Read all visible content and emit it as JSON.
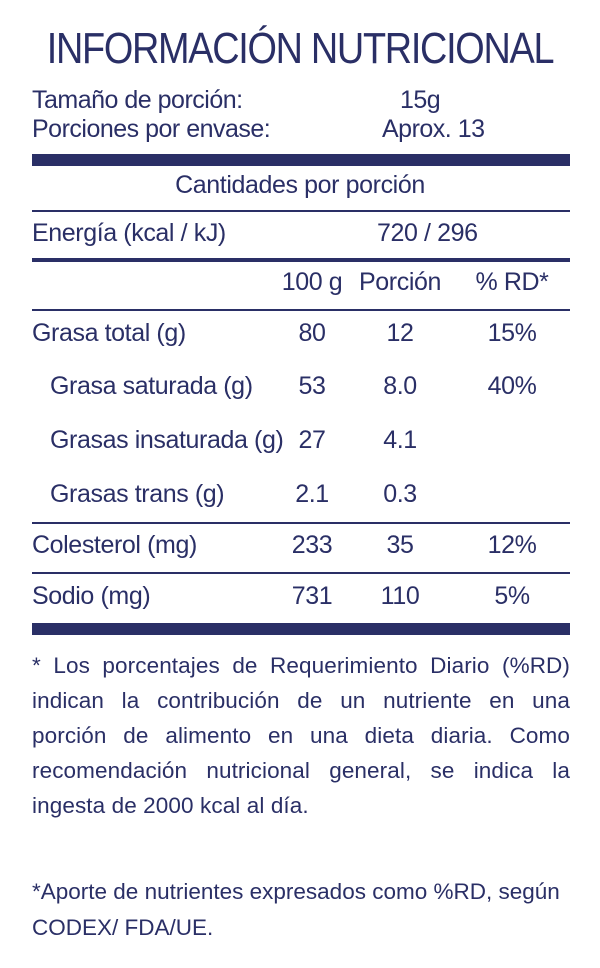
{
  "title": "INFORMACIÓN NUTRICIONAL",
  "serving": {
    "size_label": "Tamaño de porción:",
    "size_value": "15g",
    "per_package_label": "Porciones por envase:",
    "per_package_value": "Aprox. 13"
  },
  "amounts_header": "Cantidades por porción",
  "energy": {
    "label": "Energía (kcal / kJ)",
    "value": "720 / 296"
  },
  "columns": {
    "per100": "100 g",
    "portion": "Porción",
    "rd": "% RD*"
  },
  "rows": [
    {
      "label": "Grasa total (g)",
      "per100": "80",
      "portion": "12",
      "rd": "15%"
    },
    {
      "label": "Grasa saturada (g)",
      "per100": "53",
      "portion": "8.0",
      "rd": "40%"
    },
    {
      "label": "Grasas insaturada (g)",
      "per100": "27",
      "portion": "4.1",
      "rd": ""
    },
    {
      "label": "Grasas trans (g)",
      "per100": "2.1",
      "portion": "0.3",
      "rd": ""
    },
    {
      "label": "Colesterol (mg)",
      "per100": "233",
      "portion": "35",
      "rd": "12%"
    },
    {
      "label": "Sodio (mg)",
      "per100": "731",
      "portion": "110",
      "rd": "5%"
    }
  ],
  "footnote_rd": "* Los porcentajes de Requerimiento Diario (%RD) indican la contribución de un nutriente en una porción de alimento en una dieta diaria. Como recomendación nutricional general, se indica la ingesta de 2000 kcal al día.",
  "footnote_codex": "*Aporte de nutrientes expresados como %RD, según CODEX/ FDA/UE.",
  "colors": {
    "ink": "#2a2f66",
    "background": "#ffffff"
  }
}
